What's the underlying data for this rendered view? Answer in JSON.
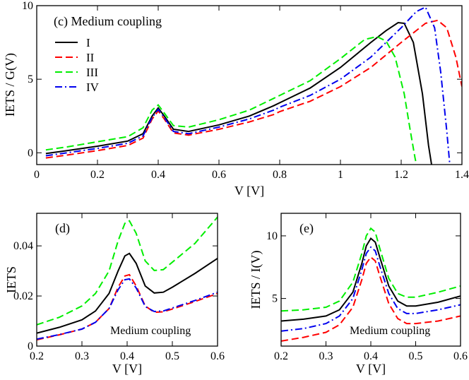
{
  "chart_data": [
    {
      "id": "c",
      "type": "line",
      "title": "(c) Medium coupling",
      "xlabel": "V [V]",
      "ylabel": "IETS / G(V)",
      "xlim": [
        0,
        1.4
      ],
      "ylim": [
        -0.8,
        10
      ],
      "xticks": [
        0,
        0.2,
        0.4,
        0.6,
        0.8,
        1,
        1.2,
        1.4
      ],
      "xtick_labels": [
        "0",
        "0.2",
        "0.4",
        "0.6",
        "0.8",
        "1",
        "1.2",
        "1.4"
      ],
      "yticks": [
        0,
        5,
        10
      ],
      "ytick_labels": [
        "0",
        "5",
        "10"
      ],
      "legend": {
        "position": "top-left",
        "entries": [
          "I",
          "II",
          "III",
          "IV"
        ]
      },
      "series": [
        {
          "name": "I",
          "color": "#000000",
          "dash": "solid",
          "x": [
            0.03,
            0.1,
            0.2,
            0.3,
            0.35,
            0.38,
            0.4,
            0.42,
            0.45,
            0.5,
            0.6,
            0.7,
            0.78,
            0.8,
            0.9,
            1.0,
            1.1,
            1.15,
            1.19,
            1.21,
            1.24,
            1.27,
            1.29,
            1.3
          ],
          "y": [
            -0.05,
            0.15,
            0.45,
            0.8,
            1.3,
            2.5,
            3.05,
            2.5,
            1.6,
            1.45,
            1.9,
            2.5,
            3.2,
            3.4,
            4.4,
            5.8,
            7.5,
            8.3,
            8.85,
            8.8,
            7.5,
            4.0,
            0.5,
            -0.8
          ]
        },
        {
          "name": "II",
          "color": "#ff0000",
          "dash": "dashed",
          "x": [
            0.03,
            0.1,
            0.2,
            0.3,
            0.35,
            0.38,
            0.4,
            0.42,
            0.45,
            0.5,
            0.6,
            0.7,
            0.78,
            0.8,
            0.9,
            1.0,
            1.1,
            1.2,
            1.28,
            1.32,
            1.35,
            1.38,
            1.4
          ],
          "y": [
            -0.35,
            -0.15,
            0.15,
            0.5,
            1.0,
            2.3,
            2.85,
            2.3,
            1.35,
            1.2,
            1.6,
            2.1,
            2.6,
            2.8,
            3.5,
            4.5,
            5.8,
            7.5,
            8.8,
            9.0,
            8.5,
            6.5,
            4.5
          ]
        },
        {
          "name": "III",
          "color": "#00ee00",
          "dash": "dashed",
          "x": [
            0.03,
            0.1,
            0.2,
            0.3,
            0.35,
            0.38,
            0.4,
            0.42,
            0.45,
            0.5,
            0.6,
            0.7,
            0.78,
            0.8,
            0.9,
            1.0,
            1.08,
            1.12,
            1.15,
            1.18,
            1.21,
            1.23,
            1.245,
            1.25
          ],
          "y": [
            0.2,
            0.4,
            0.75,
            1.1,
            1.7,
            2.9,
            3.25,
            2.7,
            1.85,
            1.75,
            2.25,
            2.9,
            3.7,
            3.9,
            4.9,
            6.4,
            7.7,
            7.9,
            7.6,
            6.5,
            4.0,
            1.5,
            -0.3,
            -0.8
          ]
        },
        {
          "name": "IV",
          "color": "#0000ee",
          "dash": "dashdot",
          "x": [
            0.03,
            0.1,
            0.2,
            0.3,
            0.35,
            0.38,
            0.4,
            0.42,
            0.45,
            0.5,
            0.6,
            0.7,
            0.78,
            0.8,
            0.9,
            1.0,
            1.1,
            1.2,
            1.25,
            1.28,
            1.31,
            1.33,
            1.35,
            1.36
          ],
          "y": [
            -0.2,
            0.0,
            0.3,
            0.65,
            1.15,
            2.4,
            2.95,
            2.4,
            1.45,
            1.3,
            1.75,
            2.3,
            2.9,
            3.1,
            3.9,
            5.0,
            6.5,
            8.5,
            9.6,
            9.9,
            8.5,
            5.5,
            1.5,
            -0.8
          ]
        }
      ]
    },
    {
      "id": "d",
      "type": "line",
      "title": "(d)",
      "annotation": "Medium coupling",
      "xlabel": "V [V]",
      "ylabel": "IETS",
      "xlim": [
        0.2,
        0.6
      ],
      "ylim": [
        0,
        0.053
      ],
      "xticks": [
        0.2,
        0.3,
        0.4,
        0.5,
        0.6
      ],
      "xtick_labels": [
        "0.2",
        "0.3",
        "0.4",
        "0.5",
        "0.6"
      ],
      "yticks": [
        0,
        0.02,
        0.04
      ],
      "ytick_labels": [
        "0",
        "0.02",
        "0.04"
      ],
      "series": [
        {
          "name": "I",
          "color": "#000000",
          "dash": "solid",
          "x": [
            0.2,
            0.25,
            0.3,
            0.33,
            0.36,
            0.38,
            0.395,
            0.405,
            0.42,
            0.44,
            0.46,
            0.48,
            0.5,
            0.55,
            0.6
          ],
          "y": [
            0.0052,
            0.0075,
            0.0105,
            0.014,
            0.021,
            0.03,
            0.036,
            0.037,
            0.033,
            0.024,
            0.0212,
            0.0215,
            0.0235,
            0.029,
            0.035
          ]
        },
        {
          "name": "II",
          "color": "#ff0000",
          "dash": "dashed",
          "x": [
            0.2,
            0.25,
            0.3,
            0.33,
            0.36,
            0.38,
            0.395,
            0.405,
            0.42,
            0.44,
            0.46,
            0.48,
            0.5,
            0.55,
            0.6
          ],
          "y": [
            0.0025,
            0.0045,
            0.0068,
            0.0095,
            0.015,
            0.0235,
            0.028,
            0.0285,
            0.024,
            0.016,
            0.0135,
            0.0137,
            0.0148,
            0.0178,
            0.021
          ]
        },
        {
          "name": "III",
          "color": "#00ee00",
          "dash": "dashed",
          "x": [
            0.2,
            0.25,
            0.3,
            0.33,
            0.36,
            0.38,
            0.395,
            0.405,
            0.42,
            0.44,
            0.46,
            0.48,
            0.5,
            0.55,
            0.6
          ],
          "y": [
            0.0085,
            0.0115,
            0.016,
            0.021,
            0.03,
            0.042,
            0.049,
            0.05,
            0.045,
            0.034,
            0.0302,
            0.0305,
            0.0335,
            0.041,
            0.0515
          ]
        },
        {
          "name": "IV",
          "color": "#0000ee",
          "dash": "dashdot",
          "x": [
            0.2,
            0.25,
            0.3,
            0.33,
            0.36,
            0.38,
            0.395,
            0.405,
            0.42,
            0.44,
            0.46,
            0.48,
            0.5,
            0.55,
            0.6
          ],
          "y": [
            0.0028,
            0.0046,
            0.0068,
            0.0095,
            0.015,
            0.0225,
            0.0265,
            0.0268,
            0.0232,
            0.0158,
            0.0138,
            0.014,
            0.0152,
            0.0182,
            0.0215
          ]
        }
      ]
    },
    {
      "id": "e",
      "type": "line",
      "title": "(e)",
      "annotation": "Medium coupling",
      "xlabel": "V [V]",
      "ylabel": "IETS / I(V)",
      "xlim": [
        0.2,
        0.6
      ],
      "ylim": [
        1.2,
        11.8
      ],
      "xticks": [
        0.2,
        0.3,
        0.4,
        0.5,
        0.6
      ],
      "xtick_labels": [
        "0.2",
        "0.3",
        "0.4",
        "0.5",
        "0.6"
      ],
      "yticks": [
        5,
        10
      ],
      "ytick_labels": [
        "5",
        "10"
      ],
      "series": [
        {
          "name": "I",
          "color": "#000000",
          "dash": "solid",
          "x": [
            0.2,
            0.25,
            0.3,
            0.33,
            0.36,
            0.38,
            0.39,
            0.4,
            0.41,
            0.42,
            0.44,
            0.46,
            0.48,
            0.5,
            0.55,
            0.6
          ],
          "y": [
            3.2,
            3.35,
            3.6,
            4.1,
            5.5,
            7.8,
            9.2,
            9.8,
            9.5,
            8.3,
            6.0,
            4.8,
            4.4,
            4.4,
            4.7,
            5.2
          ]
        },
        {
          "name": "II",
          "color": "#ff0000",
          "dash": "dashed",
          "x": [
            0.2,
            0.25,
            0.3,
            0.33,
            0.36,
            0.38,
            0.39,
            0.4,
            0.41,
            0.42,
            0.44,
            0.46,
            0.48,
            0.5,
            0.55,
            0.6
          ],
          "y": [
            1.6,
            1.9,
            2.3,
            2.9,
            4.3,
            6.5,
            7.8,
            8.3,
            8.0,
            6.8,
            4.6,
            3.4,
            3.0,
            3.0,
            3.2,
            3.6
          ]
        },
        {
          "name": "III",
          "color": "#00ee00",
          "dash": "dashed",
          "x": [
            0.2,
            0.25,
            0.3,
            0.33,
            0.36,
            0.38,
            0.39,
            0.4,
            0.41,
            0.42,
            0.44,
            0.46,
            0.48,
            0.5,
            0.55,
            0.6
          ],
          "y": [
            4.0,
            4.1,
            4.3,
            4.8,
            6.3,
            8.6,
            10.0,
            10.6,
            10.3,
            9.0,
            6.6,
            5.4,
            5.1,
            5.1,
            5.5,
            6.0
          ]
        },
        {
          "name": "IV",
          "color": "#0000ee",
          "dash": "dashdot",
          "x": [
            0.2,
            0.25,
            0.3,
            0.33,
            0.36,
            0.38,
            0.39,
            0.4,
            0.41,
            0.42,
            0.44,
            0.46,
            0.48,
            0.5,
            0.55,
            0.6
          ],
          "y": [
            2.4,
            2.6,
            3.0,
            3.6,
            5.0,
            7.3,
            8.6,
            9.1,
            8.8,
            7.6,
            5.4,
            4.2,
            3.8,
            3.8,
            4.1,
            4.5
          ]
        }
      ]
    }
  ]
}
